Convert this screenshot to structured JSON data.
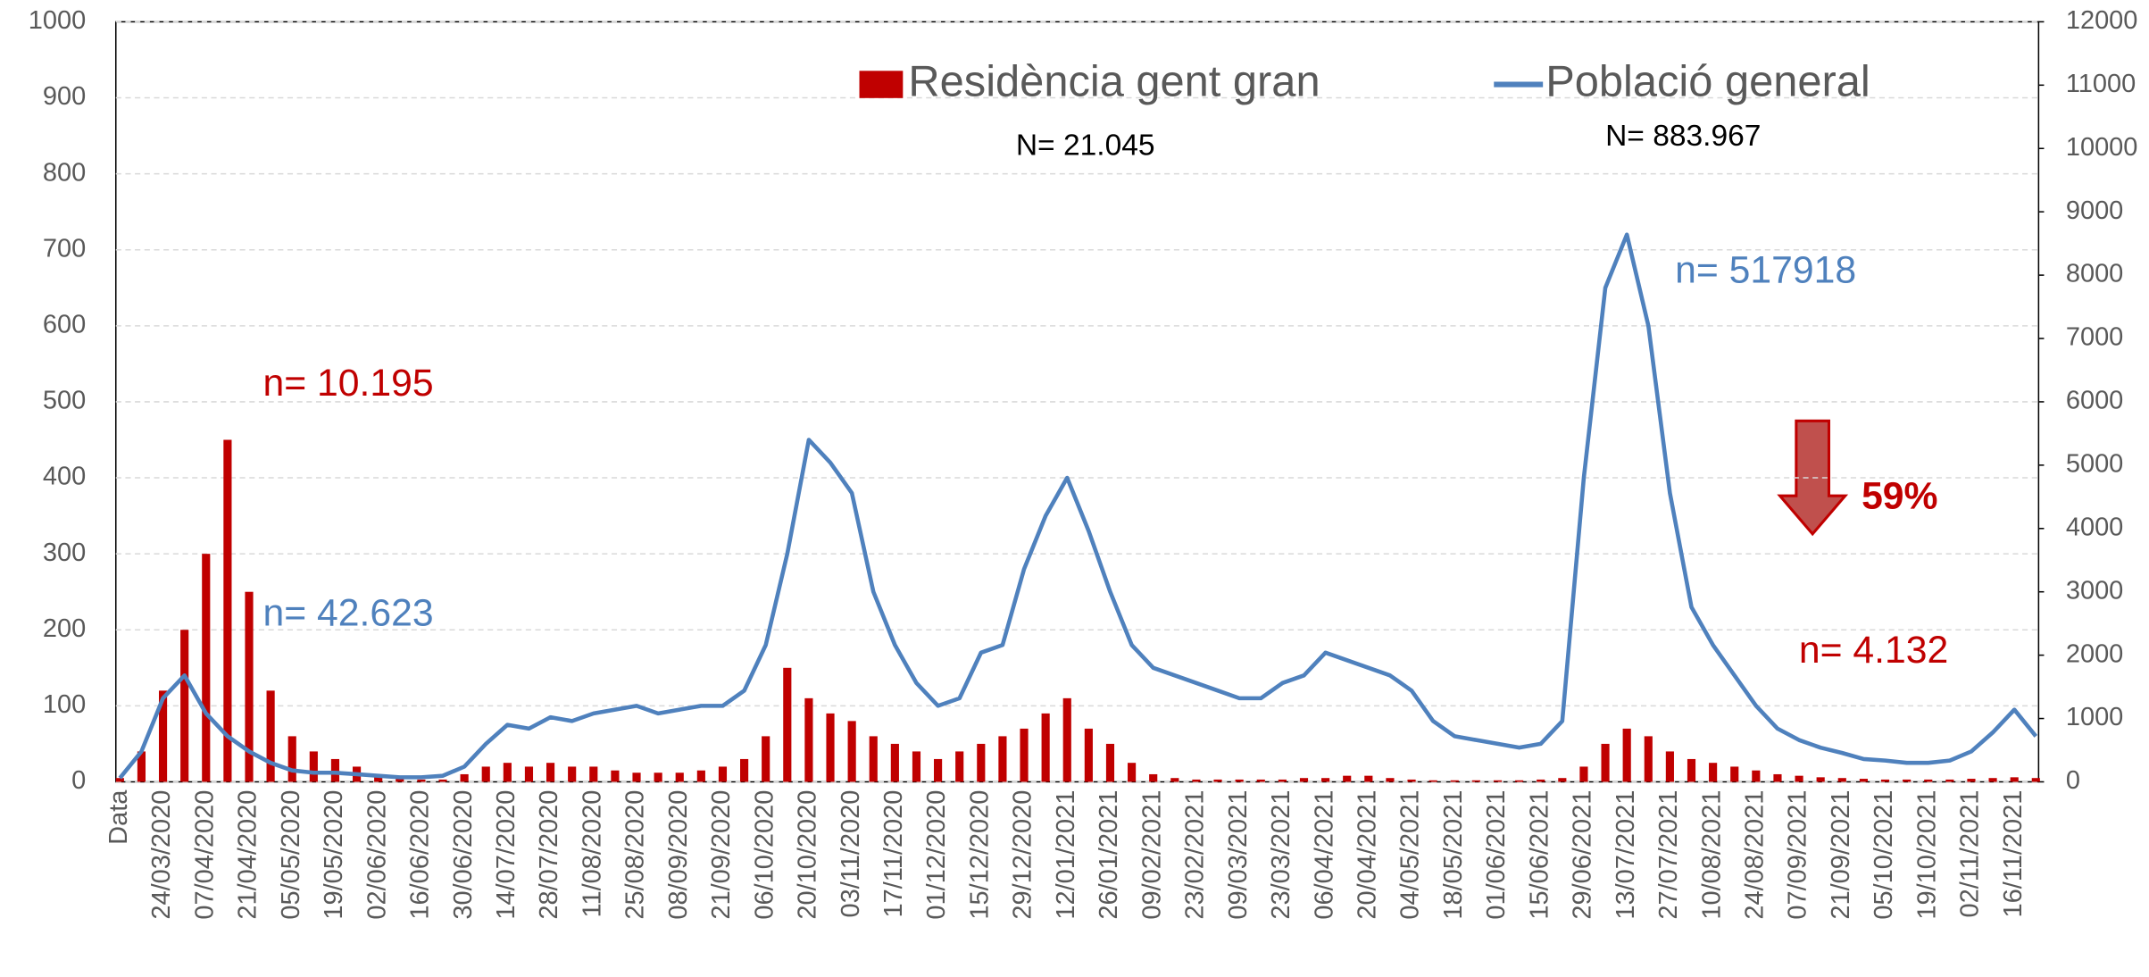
{
  "chart_data": {
    "type": "bar_line",
    "categories": [
      "Data",
      null,
      "24/03/2020",
      null,
      "07/04/2020",
      null,
      "21/04/2020",
      null,
      "05/05/2020",
      null,
      "19/05/2020",
      null,
      "02/06/2020",
      null,
      "16/06/2020",
      null,
      "30/06/2020",
      null,
      "14/07/2020",
      null,
      "28/07/2020",
      null,
      "11/08/2020",
      null,
      "25/08/2020",
      null,
      "08/09/2020",
      null,
      "21/09/2020",
      null,
      "06/10/2020",
      null,
      "20/10/2020",
      null,
      "03/11/2020",
      null,
      "17/11/2020",
      null,
      "01/12/2020",
      null,
      "15/12/2020",
      null,
      "29/12/2020",
      null,
      "12/01/2021",
      null,
      "26/01/2021",
      null,
      "09/02/2021",
      null,
      "23/02/2021",
      null,
      "09/03/2021",
      null,
      "23/03/2021",
      null,
      "06/04/2021",
      null,
      "20/04/2021",
      null,
      "04/05/2021",
      null,
      "18/05/2021",
      null,
      "01/06/2021",
      null,
      "15/06/2021",
      null,
      "29/06/2021",
      null,
      "13/07/2021",
      null,
      "27/07/2021",
      null,
      "10/08/2021",
      null,
      "24/08/2021",
      null,
      "07/09/2021",
      null,
      "21/09/2021",
      null,
      "05/10/2021",
      null,
      "19/10/2021",
      null,
      "02/11/2021",
      null,
      "16/11/2021",
      null
    ],
    "series": [
      {
        "name": "Residència gent gran",
        "type": "bar",
        "color": "#c00000",
        "values": [
          5,
          40,
          120,
          200,
          300,
          450,
          250,
          120,
          60,
          40,
          30,
          20,
          10,
          5,
          3,
          3,
          10,
          20,
          25,
          20,
          25,
          20,
          20,
          15,
          12,
          12,
          12,
          15,
          20,
          30,
          60,
          150,
          110,
          90,
          80,
          60,
          50,
          40,
          30,
          40,
          50,
          60,
          70,
          90,
          110,
          70,
          50,
          25,
          10,
          5,
          3,
          3,
          3,
          3,
          3,
          5,
          5,
          8,
          8,
          5,
          3,
          2,
          2,
          2,
          2,
          2,
          3,
          5,
          20,
          50,
          70,
          60,
          40,
          30,
          25,
          20,
          15,
          10,
          8,
          6,
          5,
          4,
          3,
          3,
          3,
          3,
          4,
          5,
          6,
          5
        ]
      },
      {
        "name": "Població general",
        "type": "line",
        "axis": "y2",
        "color": "#4f81bd",
        "values": [
          60,
          480,
          1320,
          1680,
          1080,
          720,
          480,
          300,
          180,
          144,
          144,
          120,
          96,
          72,
          72,
          96,
          240,
          600,
          900,
          840,
          1020,
          960,
          1080,
          1140,
          1200,
          1080,
          1140,
          1200,
          1200,
          1440,
          2160,
          3600,
          5400,
          5040,
          4560,
          3000,
          2160,
          1560,
          1200,
          1320,
          2040,
          2160,
          3360,
          4200,
          4800,
          3960,
          3000,
          2160,
          1800,
          1680,
          1560,
          1440,
          1320,
          1320,
          1560,
          1680,
          2040,
          1920,
          1800,
          1680,
          1440,
          960,
          720,
          660,
          600,
          540,
          600,
          960,
          4800,
          7800,
          8640,
          7200,
          4560,
          2760,
          2160,
          1680,
          1200,
          840,
          660,
          540,
          456,
          360,
          336,
          300,
          300,
          336,
          480,
          780,
          1140,
          720
        ]
      }
    ],
    "ylim": [
      0,
      1000
    ],
    "yticks": [
      0,
      100,
      200,
      300,
      400,
      500,
      600,
      700,
      800,
      900,
      1000
    ],
    "y2lim": [
      0,
      12000
    ],
    "y2ticks": [
      0,
      1000,
      2000,
      3000,
      4000,
      5000,
      6000,
      7000,
      8000,
      9000,
      10000,
      11000,
      12000
    ],
    "grid": true,
    "legend": "top",
    "annotations": [
      {
        "text": "N= 21.045",
        "color": "#000000"
      },
      {
        "text": "N= 883.967",
        "color": "#000000"
      },
      {
        "text": "n= 10.195",
        "color": "#c00000"
      },
      {
        "text": "n= 42.623",
        "color": "#4f81bd"
      },
      {
        "text": "n= 517918",
        "color": "#4f81bd"
      },
      {
        "text": "n= 4.132",
        "color": "#c00000"
      },
      {
        "text": "59%",
        "color": "#c00000"
      }
    ]
  }
}
